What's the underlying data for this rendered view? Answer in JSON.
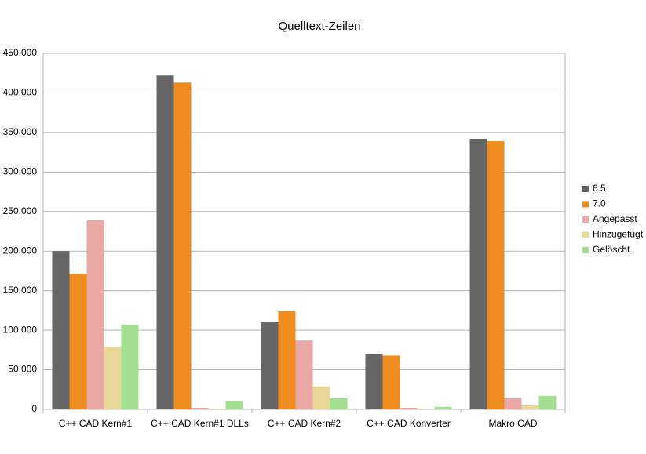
{
  "chart_data": {
    "type": "bar",
    "title": "Quelltext-Zeilen",
    "categories": [
      "C++ CAD Kern#1",
      "C++ CAD Kern#1 DLLs",
      "C++ CAD Kern#2",
      "C++ CAD Konverter",
      "Makro CAD"
    ],
    "series": [
      {
        "name": "6.5",
        "color": "#666666",
        "values": [
          200000,
          422000,
          110000,
          70000,
          342000
        ]
      },
      {
        "name": "7.0",
        "color": "#ee8c1f",
        "values": [
          171000,
          413000,
          124000,
          68000,
          339000
        ]
      },
      {
        "name": "Angepasst",
        "color": "#e9a8a6",
        "values": [
          239000,
          2000,
          87000,
          2000,
          14000
        ]
      },
      {
        "name": "Hinzugefügt",
        "color": "#e8d796",
        "values": [
          79000,
          1000,
          29000,
          1000,
          5000
        ]
      },
      {
        "name": "Gelöscht",
        "color": "#a3df91",
        "values": [
          107000,
          10000,
          14000,
          3000,
          17000
        ]
      }
    ],
    "ylim": [
      0,
      450000
    ],
    "yticks": [
      0,
      {
        "value": 50000,
        "label": "50.000"
      },
      {
        "value": 100000,
        "label": "100.000"
      },
      {
        "value": 150000,
        "label": "150.000"
      },
      {
        "value": 200000,
        "label": "200.000"
      },
      {
        "value": 250000,
        "label": "250.000"
      },
      {
        "value": 300000,
        "label": "300.000"
      },
      {
        "value": 350000,
        "label": "350.000"
      },
      {
        "value": 400000,
        "label": "400.000"
      },
      {
        "value": 450000,
        "label": "450.000"
      }
    ],
    "grid": true,
    "legend": "right"
  }
}
